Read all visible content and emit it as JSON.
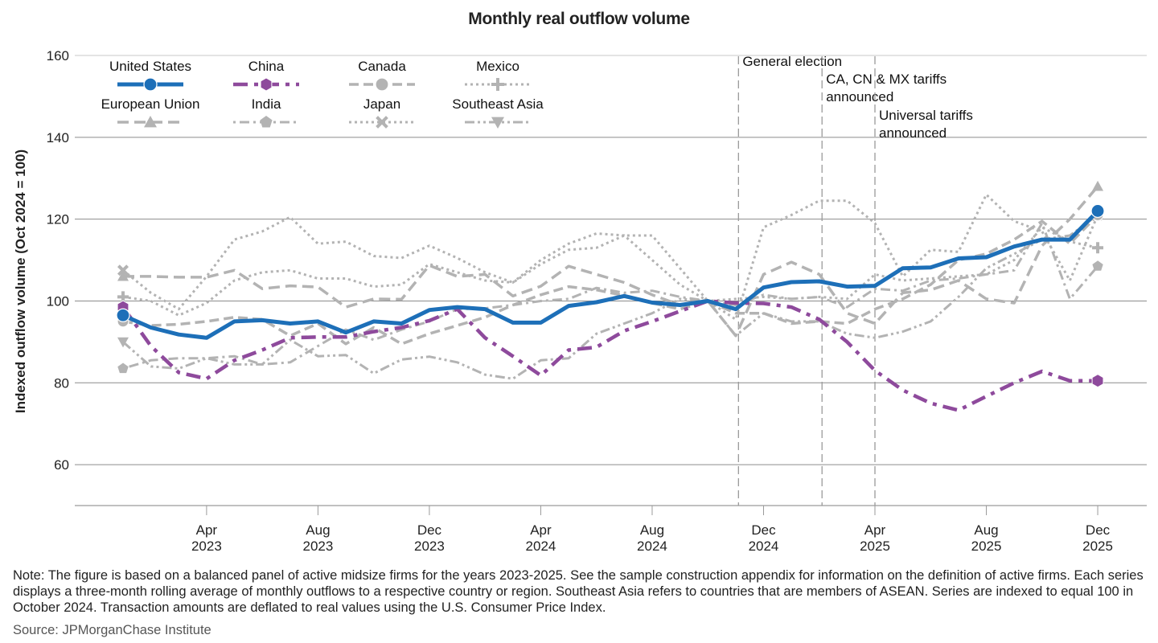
{
  "chart_data": {
    "type": "line",
    "title": "Monthly real outflow volume",
    "xlabel": "",
    "ylabel": "Indexed outflow volume (Oct 2024 = 100)",
    "ylim": [
      50,
      160
    ],
    "yticks": [
      60,
      80,
      100,
      120,
      140,
      160
    ],
    "grid": true,
    "legend_position": "top-left",
    "x": [
      "Jan 2023",
      "Feb 2023",
      "Mar 2023",
      "Apr 2023",
      "May 2023",
      "Jun 2023",
      "Jul 2023",
      "Aug 2023",
      "Sep 2023",
      "Oct 2023",
      "Nov 2023",
      "Dec 2023",
      "Jan 2024",
      "Feb 2024",
      "Mar 2024",
      "Apr 2024",
      "May 2024",
      "Jun 2024",
      "Jul 2024",
      "Aug 2024",
      "Sep 2024",
      "Oct 2024",
      "Nov 2024",
      "Dec 2024",
      "Jan 2025",
      "Feb 2025",
      "Mar 2025",
      "Apr 2025",
      "May 2025",
      "Jun 2025",
      "Jul 2025",
      "Aug 2025",
      "Sep 2025",
      "Oct 2025",
      "Nov 2025",
      "Dec 2025"
    ],
    "xticks": [
      {
        "month": "Apr",
        "year": "2023",
        "index": 3
      },
      {
        "month": "Aug",
        "year": "2023",
        "index": 7
      },
      {
        "month": "Dec",
        "year": "2023",
        "index": 11
      },
      {
        "month": "Apr",
        "year": "2024",
        "index": 15
      },
      {
        "month": "Aug",
        "year": "2024",
        "index": 19
      },
      {
        "month": "Dec",
        "year": "2024",
        "index": 23
      },
      {
        "month": "Apr",
        "year": "2025",
        "index": 27
      },
      {
        "month": "Aug",
        "year": "2025",
        "index": 31
      },
      {
        "month": "Dec",
        "year": "2025",
        "index": 35
      }
    ],
    "annotations": [
      {
        "label": [
          "General election"
        ],
        "index": 22.1
      },
      {
        "label": [
          "CA, CN & MX tariffs",
          "announced"
        ],
        "index": 25.1
      },
      {
        "label": [
          "Universal tariffs",
          "announced"
        ],
        "index": 27
      }
    ],
    "series": [
      {
        "name": "Japan",
        "color": "#b3b3b3",
        "style": "dotted",
        "marker": "x",
        "width": 3,
        "values": [
          107.5,
          102,
          98,
          106,
          115,
          117,
          120.5,
          114,
          114.5,
          111,
          110.5,
          113.5,
          110.5,
          107,
          104.5,
          109,
          112.5,
          113,
          116,
          116,
          108,
          100,
          95.5,
          118,
          121,
          124.5,
          124.5,
          119,
          106,
          112.5,
          112,
          126,
          119.5,
          117,
          105,
          121
        ]
      },
      {
        "name": "Mexico",
        "color": "#b3b3b3",
        "style": "dotted",
        "marker": "plus",
        "width": 3,
        "values": [
          101,
          100,
          96.5,
          99.5,
          105,
          107,
          107.5,
          105.5,
          105.5,
          103.5,
          104,
          109,
          107,
          105,
          104.5,
          110,
          114,
          116.5,
          116,
          110,
          104,
          100,
          100.5,
          101,
          100.5,
          101,
          100.5,
          106.5,
          105,
          105.5,
          106,
          106.5,
          110,
          118,
          114.5,
          113
        ]
      },
      {
        "name": "European Union",
        "color": "#b3b3b3",
        "style": "dashed-long",
        "marker": "triangle-up",
        "width": 3.5,
        "values": [
          106,
          106,
          105.8,
          105.8,
          107.5,
          103,
          103.7,
          103.4,
          98.5,
          100.5,
          100.4,
          108.7,
          106,
          106.5,
          101.2,
          103.6,
          108.5,
          106.5,
          104.5,
          101.5,
          99,
          100,
          91.5,
          106.5,
          109.5,
          106.5,
          97,
          94.5,
          102,
          102.7,
          105,
          100.5,
          99.5,
          113.5,
          120,
          128
        ]
      },
      {
        "name": "Canada",
        "color": "#b3b3b3",
        "style": "dashed",
        "marker": "circle",
        "width": 3.5,
        "values": [
          95,
          94,
          94.3,
          95,
          96,
          95.5,
          91.5,
          94.5,
          89.5,
          93.5,
          89.5,
          92,
          94,
          96,
          99,
          101.5,
          103.5,
          102.7,
          101.3,
          99.5,
          98,
          100,
          97,
          97,
          94.5,
          95,
          94.5,
          98,
          100.5,
          104,
          110,
          111.5,
          115,
          119.5,
          114,
          121
        ]
      },
      {
        "name": "India",
        "color": "#b3b3b3",
        "style": "dot-dash",
        "marker": "pentagon",
        "width": 3,
        "values": [
          83.5,
          85.5,
          86,
          86,
          86.5,
          84.5,
          85,
          89,
          93,
          90.5,
          93,
          95,
          98,
          98.2,
          99,
          100,
          100.5,
          103.2,
          102,
          102.5,
          101,
          100,
          99,
          101.5,
          100.5,
          101,
          98.5,
          103,
          102.5,
          105,
          105.5,
          106.5,
          107.5,
          119,
          100.5,
          108.5
        ]
      },
      {
        "name": "Southeast Asia",
        "color": "#b3b3b3",
        "style": "dash-dot-dot",
        "marker": "triangle-down",
        "width": 3,
        "values": [
          90,
          84,
          83.5,
          86,
          84.5,
          84.5,
          90.5,
          86.5,
          86.8,
          82.3,
          85.7,
          86.4,
          85,
          82,
          81,
          85.5,
          86,
          92,
          94.5,
          97,
          100.5,
          100,
          91.5,
          97,
          95,
          95,
          92,
          91,
          92.5,
          95,
          101,
          108,
          111.5,
          115,
          116,
          121
        ]
      },
      {
        "name": "China",
        "color": "#8e4a9c",
        "style": "dash-dot",
        "marker": "hexagon",
        "width": 4.5,
        "values": [
          98.5,
          89,
          82.5,
          81,
          85.5,
          88,
          91,
          91.2,
          91.2,
          92.5,
          93.5,
          95.2,
          98,
          91,
          86.5,
          81.8,
          88,
          88.7,
          92.7,
          95,
          97.5,
          100,
          99.5,
          99.4,
          98.5,
          95.5,
          90,
          83,
          78.2,
          75,
          73.3,
          76.7,
          80,
          82.8,
          80.5,
          80.5
        ]
      },
      {
        "name": "United States",
        "color": "#1d6fb8",
        "style": "solid",
        "marker": "circle",
        "width": 5,
        "values": [
          96.5,
          93.5,
          91.8,
          91,
          95,
          95.3,
          94.5,
          95,
          92.3,
          95,
          94.5,
          97.8,
          98.5,
          98,
          94.7,
          94.7,
          98.8,
          99.7,
          101.2,
          99.6,
          99,
          100,
          98,
          103.3,
          104.6,
          104.8,
          103.5,
          103.7,
          108,
          108.2,
          110.4,
          110.7,
          113.3,
          115,
          115,
          122
        ]
      }
    ],
    "legend": [
      {
        "name": "United States",
        "series": 7
      },
      {
        "name": "China",
        "series": 6
      },
      {
        "name": "Canada",
        "series": 3
      },
      {
        "name": "Mexico",
        "series": 1
      },
      {
        "name": "European Union",
        "series": 2
      },
      {
        "name": "India",
        "series": 4
      },
      {
        "name": "Japan",
        "series": 0
      },
      {
        "name": "Southeast Asia",
        "series": 5
      }
    ]
  },
  "footer": {
    "note": "Note: The figure is based on a balanced panel of active midsize firms for the years 2023-2025. See the sample construction appendix for information on the definition of active firms. Each series displays a three-month rolling average of monthly outflows to a respective country or region. Southeast Asia refers to countries that are members of ASEAN. Series are indexed to equal 100 in October 2024. Transaction amounts are deflated to real values using the U.S. Consumer Price Index.",
    "source": "Source: JPMorganChase Institute"
  }
}
